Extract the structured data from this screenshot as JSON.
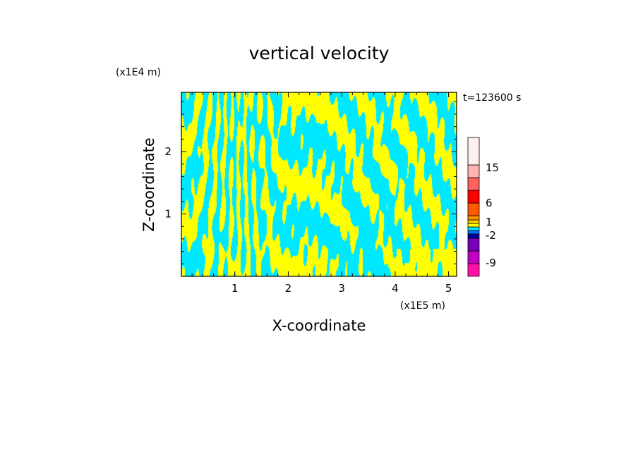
{
  "chart_data": {
    "type": "heatmap",
    "title": "vertical velocity",
    "xlabel": "X-coordinate",
    "ylabel": "Z-coordinate",
    "x_unit": "(x1E5 m)",
    "y_unit": "(x1E4 m)",
    "time_label": "t=123600 s",
    "xlim": [
      0,
      5.15
    ],
    "ylim": [
      0,
      2.95
    ],
    "x_ticks": [
      1,
      2,
      3,
      4,
      5
    ],
    "y_ticks": [
      1,
      2
    ],
    "grid": false,
    "colorbar": {
      "levels": [
        {
          "color": "#ff10a8"
        },
        {
          "color": "#c000c0"
        },
        {
          "color": "#7a00b8"
        },
        {
          "color": "#0000a0"
        },
        {
          "color": "#0070ff"
        },
        {
          "color": "#00e8ff"
        },
        {
          "color": "#ffff00"
        },
        {
          "color": "#ffd000"
        },
        {
          "color": "#ff9000"
        },
        {
          "color": "#ff5a00"
        },
        {
          "color": "#ff0000"
        },
        {
          "color": "#ff6060"
        },
        {
          "color": "#ffb4b4"
        },
        {
          "color": "#fff0f0"
        }
      ],
      "tick_labels": [
        "-9",
        "-2",
        "1",
        "6",
        "15"
      ]
    },
    "field_colors": {
      "positive": "#ffff00",
      "negative": "#00e8ff"
    }
  }
}
